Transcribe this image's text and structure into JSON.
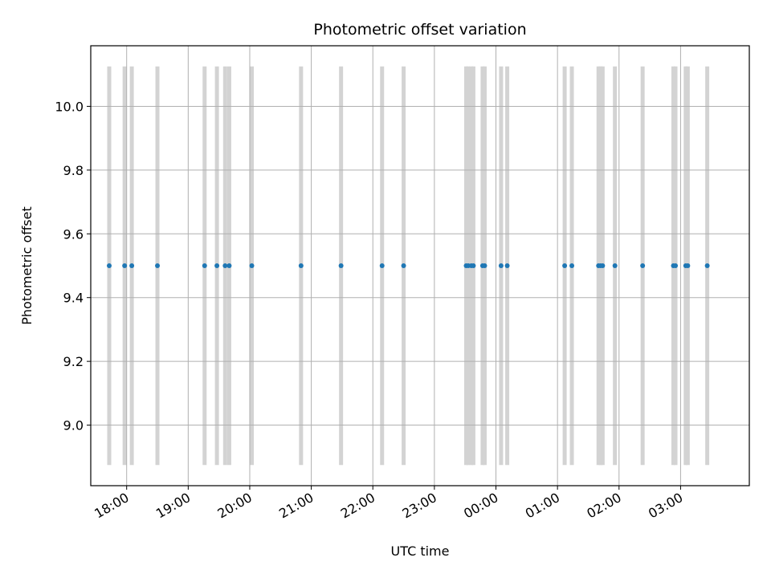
{
  "chart_data": {
    "type": "scatter",
    "title": "Photometric offset variation",
    "xlabel": "UTC time",
    "ylabel": "Photometric offset",
    "x_axis": {
      "kind": "time",
      "start_date": "2023-01-01",
      "ticks": [
        "18:00",
        "19:00",
        "20:00",
        "21:00",
        "22:00",
        "23:00",
        "00:00",
        "01:00",
        "02:00",
        "03:00"
      ],
      "range": [
        "17:25",
        "04:07"
      ]
    },
    "y_axis": {
      "ticks": [
        "9.0",
        "9.2",
        "9.4",
        "9.6",
        "9.8",
        "10.0"
      ],
      "ylim": [
        8.81,
        10.19
      ]
    },
    "grid": true,
    "colors": {
      "points": "#1f77b4",
      "bands": "#d3d3d3",
      "grid": "#b0b0b0"
    },
    "band_y_range": [
      8.875,
      10.125
    ],
    "series": [
      {
        "x": [
          "17:43",
          "17:58",
          "18:05",
          "18:30",
          "19:16",
          "19:28",
          "19:36",
          "19:40",
          "20:02",
          "20:50",
          "21:29",
          "22:09",
          "22:30",
          "23:31",
          "23:33",
          "23:36",
          "23:38",
          "23:47",
          "23:49",
          "00:05",
          "00:11",
          "01:07",
          "01:14",
          "01:40",
          "01:42",
          "01:44",
          "01:56",
          "02:23",
          "02:53",
          "02:55",
          "03:05",
          "03:07",
          "03:26"
        ],
        "y": [
          9.5,
          9.5,
          9.5,
          9.5,
          9.5,
          9.5,
          9.5,
          9.5,
          9.5,
          9.5,
          9.5,
          9.5,
          9.5,
          9.5,
          9.5,
          9.5,
          9.5,
          9.5,
          9.5,
          9.5,
          9.5,
          9.5,
          9.5,
          9.5,
          9.5,
          9.5,
          9.5,
          9.5,
          9.5,
          9.5,
          9.5,
          9.5,
          9.5
        ]
      }
    ]
  }
}
